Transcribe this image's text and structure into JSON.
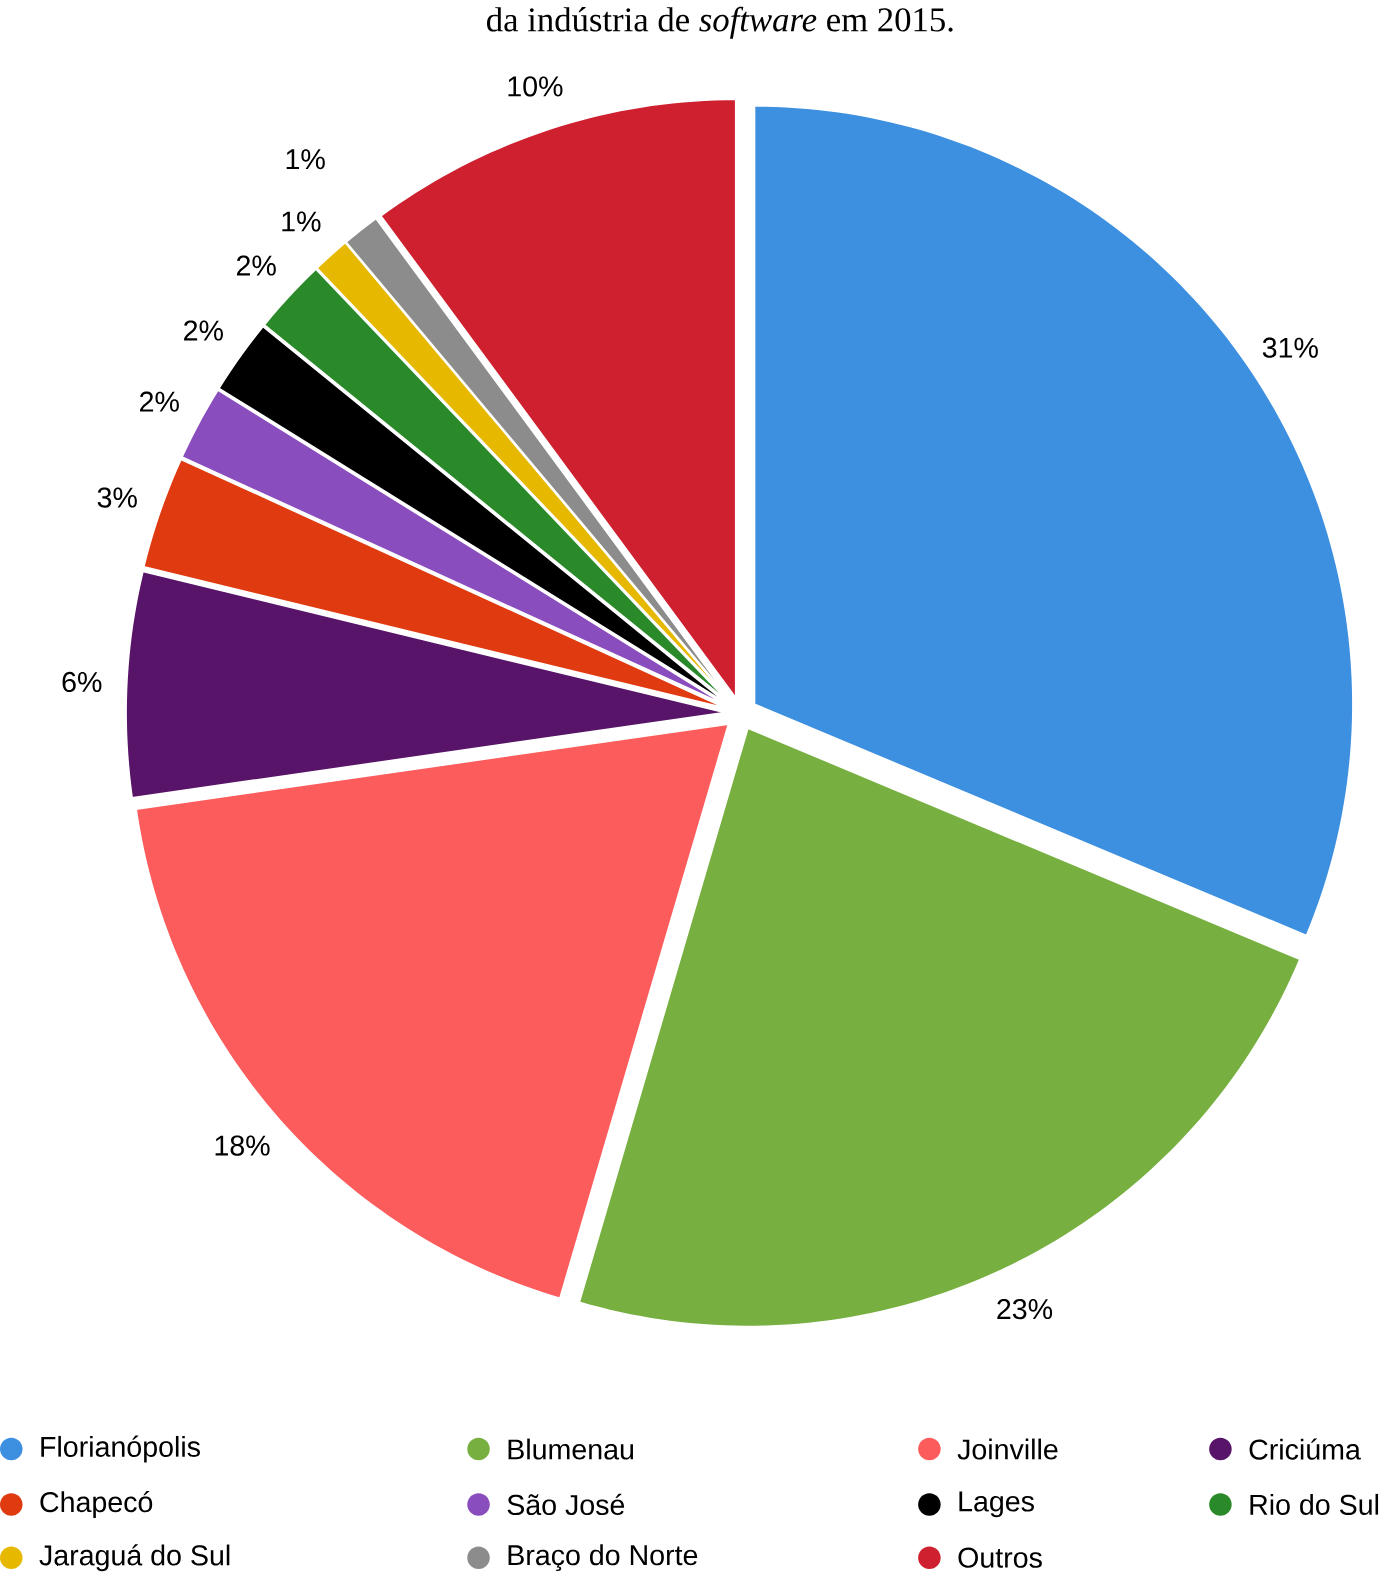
{
  "chart_data": {
    "type": "pie",
    "title": "da indústria de *software* em 2015.",
    "categories": [
      "Florianópolis",
      "Blumenau",
      "Joinville",
      "Criciúma",
      "Chapecó",
      "São José",
      "Lages",
      "Rio do Sul",
      "Jaraguá do Sul",
      "Braço do Norte",
      "Outros"
    ],
    "values": [
      31,
      23,
      18,
      6,
      3,
      2,
      2,
      2,
      1,
      1,
      10
    ],
    "value_labels": [
      "31%",
      "23%",
      "18%",
      "6%",
      "3%",
      "2%",
      "2%",
      "2%",
      "1%",
      "1%",
      "10%"
    ],
    "colors": [
      "#3d8fe0",
      "#77b041",
      "#fd5c5c",
      "#581468",
      "#e03a10",
      "#8a4dbd",
      "#000000",
      "#2a8a2a",
      "#e6b800",
      "#8c8c8c",
      "#cf2030"
    ],
    "legend": "bottom"
  }
}
